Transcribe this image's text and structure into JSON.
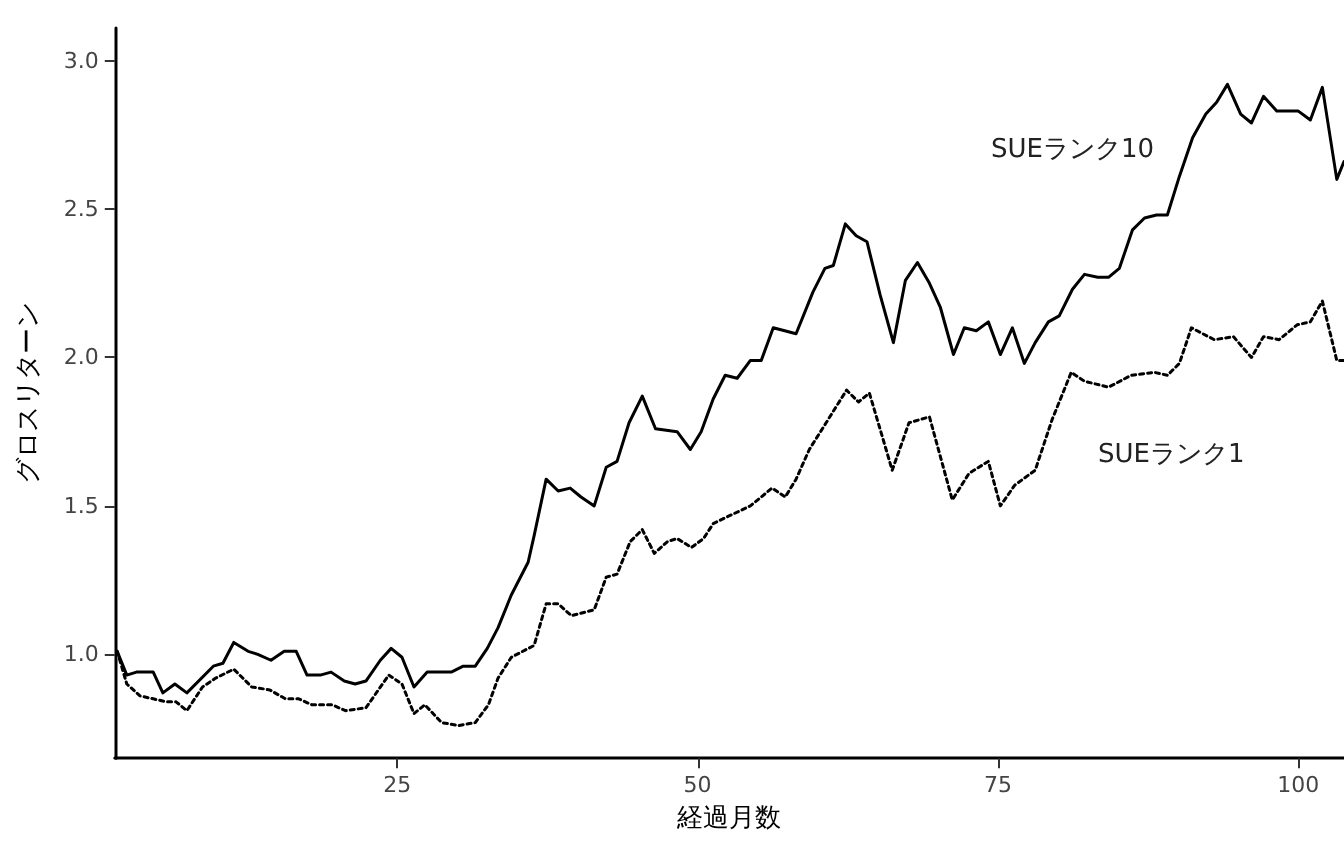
{
  "chart_data": {
    "type": "line",
    "xlabel": "経過月数",
    "ylabel": "グロスリターン",
    "xlim": [
      1.5,
      103.8
    ],
    "ylim": [
      0.65,
      3.11
    ],
    "xticks": [
      25,
      50,
      75,
      100
    ],
    "yticks": [
      {
        "value": 1,
        "label": "1.0"
      },
      {
        "value": 1.5,
        "label": "1.5"
      },
      {
        "value": 2,
        "label": "2.0"
      },
      {
        "value": 2.5,
        "label": "2.5"
      },
      {
        "value": 3,
        "label": "3.0"
      }
    ],
    "grid": false,
    "legend": false,
    "marker": "none",
    "series": [
      {
        "name": "SUEランク10",
        "color": "#000000",
        "line_style": "solid",
        "x": [
          1.7,
          2.5,
          3.3,
          4.7,
          5.5,
          6.5,
          7.5,
          9.7,
          10.5,
          11.4,
          12.6,
          13.4,
          14.5,
          15.6,
          16.6,
          17.5,
          18.6,
          19.5,
          20.6,
          21.5,
          22.4,
          23.6,
          24.5,
          25.4,
          26.4,
          27.5,
          29.5,
          30.5,
          31.5,
          32.5,
          33.4,
          34.5,
          35.9,
          36.4,
          37.4,
          38.4,
          39.4,
          40.3,
          41.4,
          42.4,
          43.3,
          44.3,
          45.4,
          46.5,
          48.3,
          49.4,
          50.3,
          51.3,
          52.3,
          53.3,
          54.4,
          55.3,
          56.3,
          58.2,
          59.6,
          60.6,
          61.3,
          62.3,
          63.2,
          64.1,
          65.2,
          66.3,
          67.3,
          68.3,
          69.3,
          70.2,
          71.3,
          72.2,
          73.2,
          74.2,
          75.2,
          76.2,
          77.2,
          78.1,
          79.2,
          80.1,
          81.2,
          82.2,
          83.3,
          84.2,
          85.1,
          86.2,
          87.2,
          88.2,
          89.1,
          90.1,
          91.2,
          92.3,
          93.2,
          94.1,
          95.2,
          96.1,
          97.1,
          98.2,
          100.0,
          101.0,
          102.0,
          103.2,
          103.8
        ],
        "values": [
          1.01,
          0.93,
          0.94,
          0.94,
          0.87,
          0.9,
          0.87,
          0.96,
          0.97,
          1.04,
          1.01,
          1.0,
          0.98,
          1.01,
          1.01,
          0.93,
          0.93,
          0.94,
          0.91,
          0.9,
          0.91,
          0.98,
          1.02,
          0.99,
          0.89,
          0.94,
          0.94,
          0.96,
          0.96,
          1.02,
          1.09,
          1.2,
          1.31,
          1.4,
          1.59,
          1.55,
          1.56,
          1.53,
          1.5,
          1.63,
          1.65,
          1.78,
          1.87,
          1.76,
          1.75,
          1.69,
          1.75,
          1.86,
          1.94,
          1.93,
          1.99,
          1.99,
          2.1,
          2.08,
          2.22,
          2.3,
          2.31,
          2.45,
          2.41,
          2.39,
          2.21,
          2.05,
          2.26,
          2.32,
          2.25,
          2.17,
          2.01,
          2.1,
          2.09,
          2.12,
          2.01,
          2.1,
          1.98,
          2.05,
          2.12,
          2.14,
          2.23,
          2.28,
          2.27,
          2.27,
          2.3,
          2.43,
          2.47,
          2.48,
          2.48,
          2.61,
          2.74,
          2.82,
          2.86,
          2.92,
          2.82,
          2.79,
          2.88,
          2.83,
          2.83,
          2.8,
          2.91,
          2.6,
          2.66
        ]
      },
      {
        "name": "SUEランク1",
        "color": "#000000",
        "line_style": "dotted",
        "x": [
          1.7,
          2.5,
          3.6,
          4.7,
          5.8,
          6.6,
          7.5,
          8.8,
          9.9,
          11.4,
          12.9,
          14.4,
          15.7,
          16.8,
          17.9,
          19.6,
          20.7,
          22.4,
          24.3,
          25.4,
          26.4,
          27.3,
          28.7,
          30.1,
          31.5,
          32.6,
          33.4,
          34.5,
          36.4,
          37.4,
          38.4,
          39.5,
          41.4,
          42.4,
          43.3,
          44.4,
          45.4,
          46.4,
          47.5,
          48.3,
          49.5,
          50.5,
          51.3,
          52.3,
          54.4,
          56.2,
          57.3,
          58.2,
          59.3,
          60.7,
          62.4,
          63.4,
          64.3,
          65.4,
          66.2,
          67.6,
          69.3,
          71.2,
          72.6,
          74.2,
          75.2,
          76.4,
          78.1,
          79.5,
          81.1,
          82.2,
          84.2,
          86.1,
          88.0,
          89.1,
          90.1,
          91.1,
          93.0,
          94.6,
          96.1,
          97.1,
          98.4,
          99.9,
          101.0,
          102.0,
          103.2,
          103.8
        ],
        "values": [
          1.01,
          0.9,
          0.86,
          0.85,
          0.84,
          0.84,
          0.81,
          0.89,
          0.92,
          0.95,
          0.89,
          0.88,
          0.85,
          0.85,
          0.83,
          0.83,
          0.81,
          0.82,
          0.93,
          0.9,
          0.8,
          0.83,
          0.77,
          0.76,
          0.77,
          0.83,
          0.92,
          0.99,
          1.03,
          1.17,
          1.17,
          1.13,
          1.15,
          1.26,
          1.27,
          1.38,
          1.42,
          1.34,
          1.38,
          1.39,
          1.36,
          1.39,
          1.44,
          1.46,
          1.5,
          1.56,
          1.53,
          1.59,
          1.69,
          1.78,
          1.89,
          1.85,
          1.88,
          1.73,
          1.62,
          1.78,
          1.8,
          1.52,
          1.61,
          1.65,
          1.5,
          1.57,
          1.62,
          1.79,
          1.95,
          1.92,
          1.9,
          1.94,
          1.95,
          1.94,
          1.98,
          2.1,
          2.06,
          2.07,
          2.0,
          2.07,
          2.06,
          2.11,
          2.12,
          2.19,
          1.99,
          1.99
        ]
      }
    ]
  }
}
